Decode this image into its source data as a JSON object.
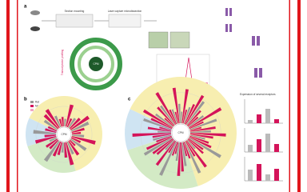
{
  "panel_a": {
    "label": "a",
    "steps": [
      "Section mounting",
      "Laser capture microdissection",
      "Transcriptome profiling"
    ],
    "center": "CPM"
  },
  "panel_b": {
    "label": "b",
    "legend": [
      "Rat",
      "Mouse",
      "Overlap"
    ],
    "center": "CPM"
  },
  "panel_c": {
    "label": "c",
    "center": "CPM",
    "inset_title": "Expression of several receptors"
  }
}
